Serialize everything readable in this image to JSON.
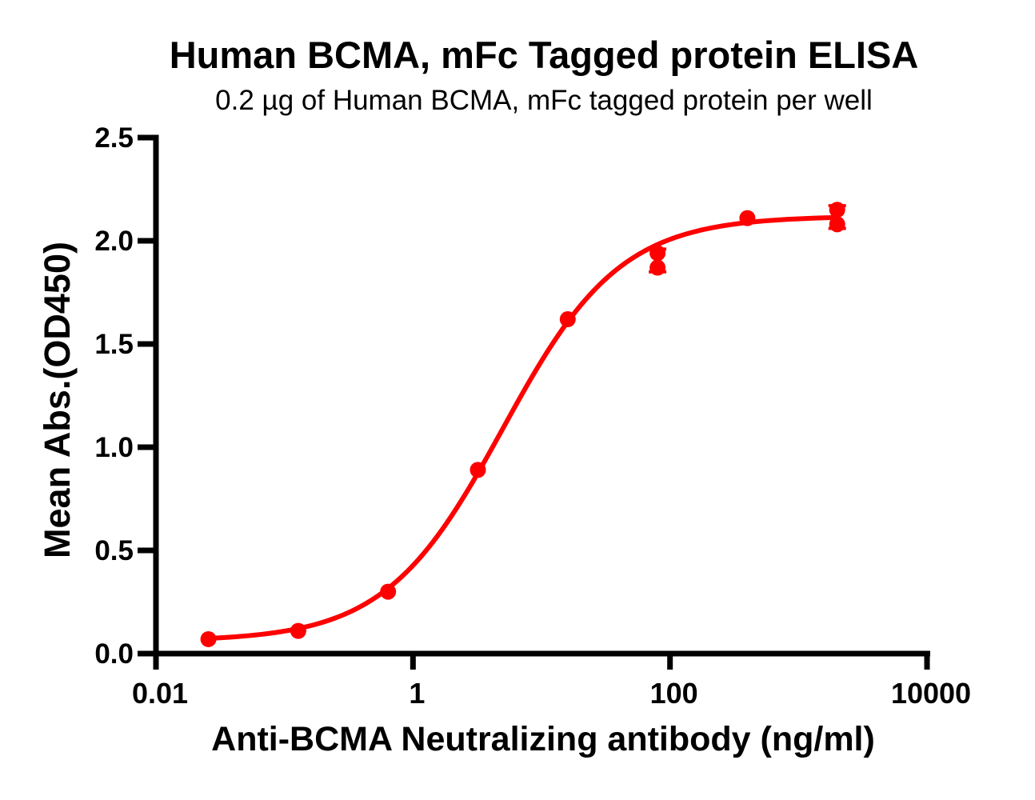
{
  "figure": {
    "background_color": "#ffffff",
    "axis_color": "#000000"
  },
  "chart_data": {
    "type": "scatter",
    "title": "Human BCMA, mFc Tagged protein ELISA",
    "subtitle": "0.2 µg of Human BCMA, mFc tagged protein per well",
    "xlabel": "Anti-BCMA Neutralizing antibody (ng/ml)",
    "ylabel": "Mean Abs.(OD450)",
    "x_scale": "log10",
    "xlim": [
      0.01,
      10000
    ],
    "ylim": [
      0.0,
      2.5
    ],
    "grid": false,
    "legend": null,
    "x_ticks": [
      {
        "value": 0.01,
        "label": "0.01"
      },
      {
        "value": 1,
        "label": "1"
      },
      {
        "value": 100,
        "label": "100"
      },
      {
        "value": 10000,
        "label": "10000"
      }
    ],
    "y_ticks": [
      {
        "value": 0.0,
        "label": "0.0"
      },
      {
        "value": 0.5,
        "label": "0.5"
      },
      {
        "value": 1.0,
        "label": "1.0"
      },
      {
        "value": 1.5,
        "label": "1.5"
      },
      {
        "value": 2.0,
        "label": "2.0"
      },
      {
        "value": 2.5,
        "label": "2.5"
      }
    ],
    "series": [
      {
        "name": "Anti-BCMA Neutralizing antibody",
        "color": "#FF0000",
        "marker": "circle",
        "points": [
          {
            "x": 0.0256,
            "y": [
              0.07
            ]
          },
          {
            "x": 0.128,
            "y": [
              0.11
            ]
          },
          {
            "x": 0.64,
            "y": [
              0.3
            ]
          },
          {
            "x": 3.2,
            "y": [
              0.89
            ]
          },
          {
            "x": 16,
            "y": [
              1.62
            ]
          },
          {
            "x": 80,
            "y": [
              1.94,
              1.87
            ],
            "error_bar": [
              1.85,
              1.96
            ]
          },
          {
            "x": 400,
            "y": [
              2.11
            ]
          },
          {
            "x": 2000,
            "y": [
              2.15,
              2.08
            ],
            "error_bar": [
              2.06,
              2.17
            ]
          }
        ],
        "fit": {
          "model": "4PL",
          "bottom": 0.06,
          "top": 2.12,
          "ec50_ng_ml": 5.0,
          "hill": 0.95,
          "curve_x_range": [
            0.0256,
            2000
          ]
        }
      }
    ]
  }
}
